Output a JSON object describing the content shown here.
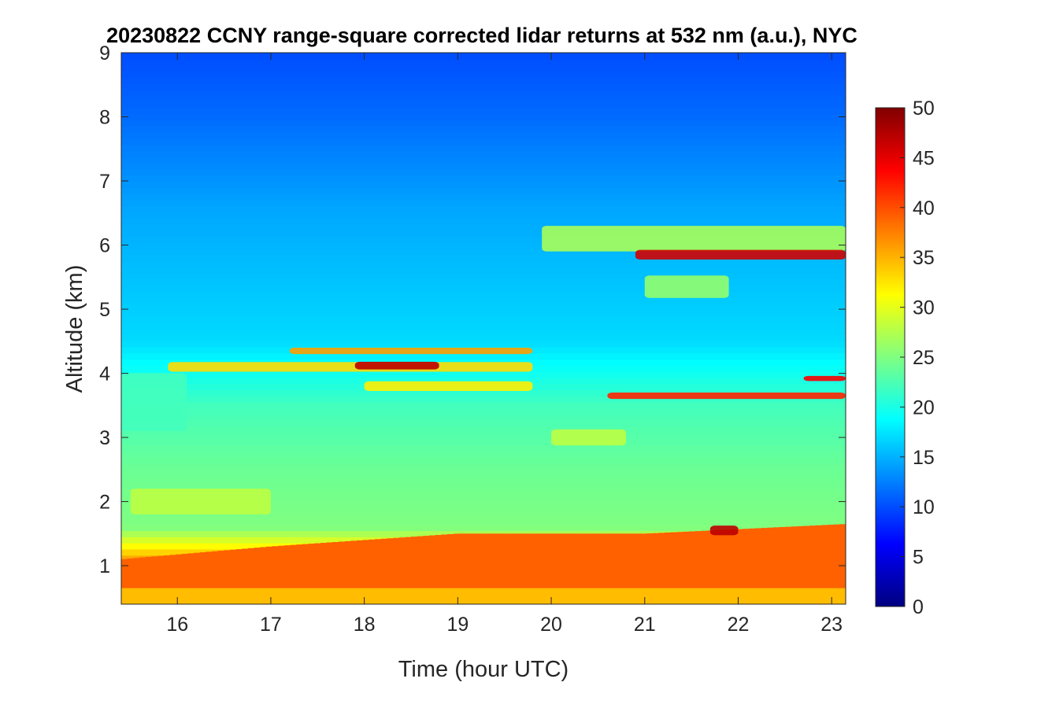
{
  "chart_data": {
    "type": "heatmap",
    "title": "20230822 CCNY range-square corrected lidar returns at 532 nm (a.u.), NYC",
    "xlabel": "Time (hour UTC)",
    "ylabel": "Altitude (km)",
    "xlim": [
      15.4,
      23.15
    ],
    "ylim": [
      0.4,
      9
    ],
    "xticks": [
      16,
      17,
      18,
      19,
      20,
      21,
      22,
      23
    ],
    "yticks": [
      1,
      2,
      3,
      4,
      5,
      6,
      7,
      8,
      9
    ],
    "colorbar": {
      "colormap": "jet",
      "clim": [
        0,
        50
      ],
      "ticks": [
        0,
        5,
        10,
        15,
        20,
        25,
        30,
        35,
        40,
        45,
        50
      ]
    },
    "background": {
      "levels": [
        {
          "alt": 0.4,
          "value": 36
        },
        {
          "alt": 1.0,
          "value": 38
        },
        {
          "alt": 1.6,
          "value": 25
        },
        {
          "alt": 2.5,
          "value": 24
        },
        {
          "alt": 3.5,
          "value": 22
        },
        {
          "alt": 4.5,
          "value": 17
        },
        {
          "alt": 6.5,
          "value": 14.5
        },
        {
          "alt": 8.0,
          "value": 11.5
        },
        {
          "alt": 9.0,
          "value": 10
        }
      ],
      "boundary_layer_top_km": [
        {
          "time": 15.4,
          "alt": 1.1
        },
        {
          "time": 17.0,
          "alt": 1.3
        },
        {
          "time": 19.0,
          "alt": 1.5
        },
        {
          "time": 21.0,
          "alt": 1.5
        },
        {
          "time": 23.15,
          "alt": 1.65
        }
      ]
    },
    "layers": [
      {
        "t_start": 15.4,
        "t_end": 16.1,
        "alt": 3.55,
        "thickness": 0.9,
        "value": 22
      },
      {
        "t_start": 15.9,
        "t_end": 19.8,
        "alt": 4.1,
        "thickness": 0.15,
        "value": 33
      },
      {
        "t_start": 17.2,
        "t_end": 19.8,
        "alt": 4.35,
        "thickness": 0.1,
        "value": 36
      },
      {
        "t_start": 17.9,
        "t_end": 18.8,
        "alt": 4.12,
        "thickness": 0.12,
        "value": 47
      },
      {
        "t_start": 18.0,
        "t_end": 19.8,
        "alt": 3.8,
        "thickness": 0.15,
        "value": 32
      },
      {
        "t_start": 20.6,
        "t_end": 23.15,
        "alt": 3.65,
        "thickness": 0.1,
        "value": 42
      },
      {
        "t_start": 22.7,
        "t_end": 23.15,
        "alt": 3.92,
        "thickness": 0.08,
        "value": 44
      },
      {
        "t_start": 19.9,
        "t_end": 23.15,
        "alt": 6.1,
        "thickness": 0.4,
        "value": 27
      },
      {
        "t_start": 20.9,
        "t_end": 23.15,
        "alt": 5.85,
        "thickness": 0.15,
        "value": 46
      },
      {
        "t_start": 21.0,
        "t_end": 21.9,
        "alt": 5.35,
        "thickness": 0.35,
        "value": 26
      },
      {
        "t_start": 20.0,
        "t_end": 20.8,
        "alt": 3.0,
        "thickness": 0.25,
        "value": 28
      },
      {
        "t_start": 15.5,
        "t_end": 17.0,
        "alt": 2.0,
        "thickness": 0.4,
        "value": 28
      },
      {
        "t_start": 21.7,
        "t_end": 22.0,
        "alt": 1.55,
        "thickness": 0.15,
        "value": 47
      }
    ]
  }
}
